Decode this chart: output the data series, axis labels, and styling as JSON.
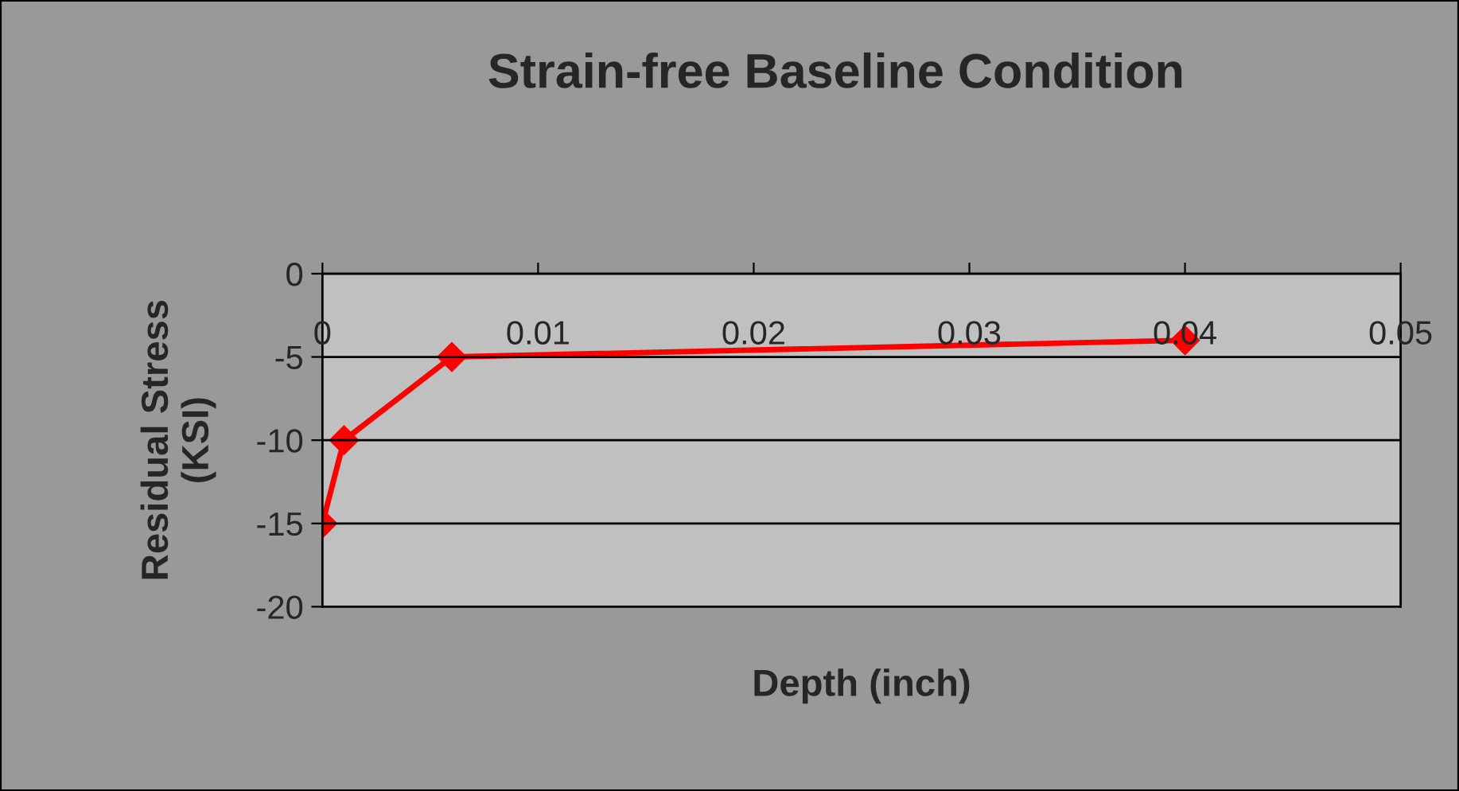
{
  "chart_data": {
    "type": "line",
    "title": "Strain-free Baseline Condition",
    "xlabel": "Depth (inch)",
    "ylabel": "Residual Stress\n(KSI)",
    "series": [
      {
        "color": "#ff0000",
        "x": [
          0,
          0.001,
          0.006,
          0.04
        ],
        "values": [
          -15,
          -10,
          -5,
          -4
        ]
      }
    ],
    "xlim": [
      0,
      0.05
    ],
    "xticks": [
      0,
      0.01,
      0.02,
      0.03,
      0.04,
      0.05
    ],
    "ylim": [
      -20,
      0
    ],
    "yticks": [
      -20,
      -15,
      -10,
      -5,
      0
    ],
    "grid": "y",
    "marker": "diamond",
    "line_style": "solid"
  }
}
